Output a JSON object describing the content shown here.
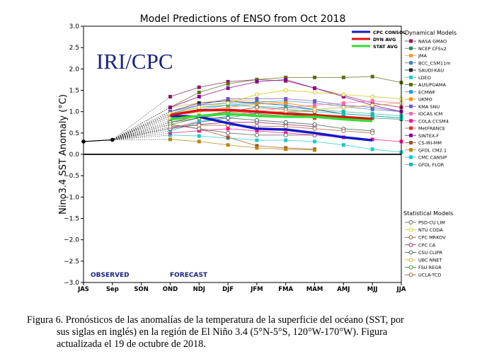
{
  "chart_data": {
    "type": "line",
    "title": "Model Predictions of ENSO from Oct 2018",
    "ylabel": "Nino3.4 SST Anomaly (°C)",
    "xlabel": "",
    "categories": [
      "JAS",
      "Sep",
      "SON",
      "OND",
      "NDJ",
      "DJF",
      "JFM",
      "FMA",
      "MAM",
      "AMJ",
      "MJJ",
      "JJA"
    ],
    "ylim": [
      -3.0,
      3.0
    ],
    "yticks": [
      "−3.0",
      "−2.5",
      "−2.0",
      "−1.5",
      "−1.0",
      "−0.5",
      "0.0",
      "0.5",
      "1.0",
      "1.5",
      "2.0",
      "2.5",
      "3.0"
    ],
    "logo_text": "IRI/CPC",
    "observed_label": "OBSERVED",
    "forecast_label": "FORECAST",
    "observed": [
      0.3,
      0.34
    ],
    "averages": [
      {
        "name": "CPC CONSOL",
        "color": "#1818c8",
        "values": [
          0.9,
          0.88,
          0.73,
          0.6,
          0.58,
          0.5,
          0.4,
          0.33
        ]
      },
      {
        "name": "DYN AVG",
        "color": "#e01010",
        "values": [
          0.92,
          1.03,
          1.04,
          1.0,
          0.95,
          0.92,
          0.87,
          0.83
        ]
      },
      {
        "name": "STAT AVG",
        "color": "#33dd33",
        "values": [
          0.82,
          0.9,
          0.95,
          0.9,
          0.88,
          0.88,
          0.82,
          0.78
        ]
      }
    ],
    "legend_dynamical_title": "Dynamical Models",
    "legend_statistical_title": "Statistical Models",
    "dynamical_models": [
      {
        "name": "NASA GMAO",
        "color": "#8b1a5c",
        "values": [
          1.35,
          1.57,
          1.7,
          1.75,
          1.72,
          1.55,
          1.38,
          1.2,
          1.1
        ]
      },
      {
        "name": "NCEP CFSv2",
        "color": "#2e8b57",
        "values": [
          0.62,
          0.75,
          0.85,
          0.97,
          1.0,
          0.93,
          0.9,
          0.85,
          0.82
        ]
      },
      {
        "name": "JMA",
        "color": "#f0a030",
        "values": [
          1.1,
          1.2,
          1.28,
          1.25,
          1.2,
          1.1
        ]
      },
      {
        "name": "BCC_CSM11m",
        "color": "#4682b4",
        "values": [
          0.95,
          1.15,
          1.2,
          1.22,
          1.25,
          1.2,
          1.12,
          1.05,
          1.0
        ]
      },
      {
        "name": "SAUDI-KAU",
        "color": "#222222",
        "values": [
          1.0,
          1.2,
          1.25,
          1.2,
          1.15,
          1.05,
          0.95,
          0.9,
          0.85
        ]
      },
      {
        "name": "LDEO",
        "color": "#1ec8c8",
        "values": [
          0.45,
          0.43,
          0.38,
          0.33,
          0.33,
          0.3,
          0.22,
          0.12,
          0.05
        ]
      },
      {
        "name": "AUS/POAMA",
        "color": "#5a6e14",
        "values": [
          1.1,
          1.45,
          1.65,
          1.75,
          1.8,
          1.8,
          1.8,
          1.82,
          1.68
        ]
      },
      {
        "name": "ECMWF",
        "color": "#1e90ff",
        "values": [
          0.9,
          1.05,
          1.15,
          1.2,
          1.15,
          1.05
        ]
      },
      {
        "name": "UKMO",
        "color": "#ff8c00",
        "values": [
          0.9,
          1.02,
          1.1,
          1.18,
          1.2,
          1.1
        ]
      },
      {
        "name": "KMA SNU",
        "color": "#6a5acd",
        "values": [
          1.0,
          1.15,
          1.3,
          1.3,
          1.3,
          1.25,
          1.15,
          1.1,
          1.0
        ]
      },
      {
        "name": "IOCAS ICM",
        "color": "#ff69b4",
        "values": [
          0.6,
          0.78,
          0.9,
          1.0,
          1.1,
          1.15,
          1.2,
          1.25,
          1.2
        ]
      },
      {
        "name": "COLA CCSM4",
        "color": "#ff1493",
        "values": [
          0.5,
          0.55,
          0.6,
          0.55,
          0.5,
          0.45,
          0.4,
          0.35,
          0.3
        ]
      },
      {
        "name": "MetFRANCE",
        "color": "#e03030",
        "values": [
          0.75,
          0.9,
          1.0,
          0.95,
          0.9,
          0.85
        ]
      },
      {
        "name": "SINTEX-F",
        "color": "#8b008b",
        "values": [
          1.1,
          1.35,
          1.55,
          1.7,
          1.75,
          1.55,
          1.35,
          1.15,
          1.0
        ]
      },
      {
        "name": "CS-IRI-MM",
        "color": "#a0522d",
        "values": [
          0.7,
          0.6,
          0.4,
          0.2,
          0.15,
          0.12
        ]
      },
      {
        "name": "GFDL CM2.1",
        "color": "#b8860b",
        "values": [
          0.35,
          0.3,
          0.22,
          0.15,
          0.12,
          0.1
        ]
      },
      {
        "name": "CMC CANSIP",
        "color": "#00ced1",
        "values": [
          0.55,
          0.75,
          0.9,
          0.95,
          1.0,
          1.0,
          0.95,
          0.9,
          0.85
        ]
      },
      {
        "name": "GFDL FLOR",
        "color": "#20b2aa",
        "values": [
          0.95,
          1.1,
          1.15,
          1.12,
          1.1,
          1.05,
          1.0,
          0.95,
          0.9
        ]
      }
    ],
    "statistical_models": [
      {
        "name": "PSD-CU LIM",
        "color": "#555555",
        "values": [
          0.7,
          0.6,
          0.5,
          0.45,
          0.45,
          0.45
        ]
      },
      {
        "name": "NTU CODA",
        "color": "#c8c800",
        "values": [
          0.95,
          1.1,
          1.2,
          1.4,
          1.5,
          1.45,
          1.4,
          1.35,
          1.3
        ]
      },
      {
        "name": "CPC MRKOV",
        "color": "#8b4513",
        "values": [
          0.8,
          0.9,
          1.0,
          1.1,
          1.05,
          1.0
        ]
      },
      {
        "name": "CPC CA",
        "color": "#8b1a5c",
        "values": [
          0.6,
          0.7,
          0.75,
          0.75,
          0.7,
          0.65
        ]
      },
      {
        "name": "CSU CLIPR",
        "color": "#2f4f4f",
        "values": [
          0.75,
          0.85,
          0.85,
          0.8,
          0.75,
          0.7,
          0.6,
          0.55
        ]
      },
      {
        "name": "UBC NNET",
        "color": "#daa520",
        "values": [
          0.85,
          1.0,
          1.05,
          1.0,
          1.0,
          1.05,
          1.1,
          1.15,
          1.2
        ]
      },
      {
        "name": "FSU REGR",
        "color": "#228b22",
        "values": [
          0.7,
          0.85,
          0.95,
          0.92,
          0.9,
          0.88
        ]
      },
      {
        "name": "UCLA-TCD",
        "color": "#a0522d",
        "values": [
          0.65,
          0.68,
          0.68,
          0.66,
          0.65,
          0.6,
          0.55,
          0.5
        ]
      }
    ]
  },
  "caption": {
    "line1": "Figura 6. Pronósticos de las anomalías de la temperatura de la superficie del océano (SST, por",
    "line2": "sus siglas en inglés) en la región de El Niño 3.4 (5°N-5°S, 120°W-170°W). Figura",
    "line3": "actualizada el 19 de octubre de 2018."
  }
}
